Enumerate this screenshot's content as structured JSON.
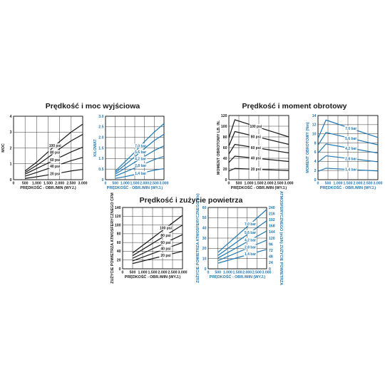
{
  "titles": {
    "power": "Prędkość i moc wyjściowa",
    "torque": "Prędkość i moment obrotowy",
    "air": "Prędkość i zużycie powietrza"
  },
  "colors": {
    "black": "#1a1a1a",
    "blue": "#1f78b4"
  },
  "chart_data": [
    {
      "id": "power_psi",
      "type": "line",
      "color": "black",
      "xlabel": "PRĘDKOŚĆ - OBR./MIN (WYJ.)",
      "ylabel": "MOC",
      "xlim": [
        0,
        3000
      ],
      "ylim": [
        0,
        4
      ],
      "xticks": [
        "0",
        "500",
        "1.000",
        "1.500",
        "2.000",
        "2.500",
        "3.000"
      ],
      "xtick_values": [
        0,
        500,
        1000,
        1500,
        2000,
        2500,
        3000
      ],
      "yticks": [
        "0",
        "1",
        "2",
        "3",
        "4"
      ],
      "ytick_values": [
        0,
        1,
        2,
        3,
        4
      ],
      "label_at": 0.6,
      "series": [
        {
          "name": "100 psi",
          "x": [
            500,
            1000,
            1500,
            2000,
            2500,
            3000
          ],
          "y": [
            0.55,
            1.1,
            1.75,
            2.4,
            3.0,
            3.5
          ]
        },
        {
          "name": "80 psi",
          "x": [
            500,
            1000,
            1500,
            2000,
            2500,
            3000
          ],
          "y": [
            0.45,
            0.9,
            1.4,
            1.95,
            2.45,
            2.85
          ]
        },
        {
          "name": "60 psi",
          "x": [
            500,
            1000,
            1500,
            2000,
            2500,
            3000
          ],
          "y": [
            0.35,
            0.7,
            1.05,
            1.4,
            1.75,
            2.05
          ]
        },
        {
          "name": "40 psi",
          "x": [
            500,
            1000,
            1500,
            2000,
            2500,
            3000
          ],
          "y": [
            0.22,
            0.45,
            0.7,
            0.95,
            1.2,
            1.4
          ]
        },
        {
          "name": "20 psi",
          "x": [
            500,
            1000,
            1500,
            2000,
            2500,
            3000
          ],
          "y": [
            0.08,
            0.18,
            0.3,
            0.42,
            0.55,
            0.65
          ]
        }
      ]
    },
    {
      "id": "power_bar",
      "type": "line",
      "color": "blue",
      "xlabel": "PRĘDKOŚĆ - OBR./MIN (WYJ.)",
      "ylabel": "KILOWAT",
      "xlim": [
        0,
        3000
      ],
      "ylim": [
        0,
        3.0
      ],
      "xticks": [
        "0",
        "500",
        "1.000",
        "1.500",
        "2.000",
        "2.500",
        "3.000"
      ],
      "xtick_values": [
        0,
        500,
        1000,
        1500,
        2000,
        2500,
        3000
      ],
      "yticks": [
        "0",
        "0.5",
        "1.0",
        "1.5",
        "2.0",
        "2.5",
        "3.0"
      ],
      "ytick_values": [
        0,
        0.5,
        1.0,
        1.5,
        2.0,
        2.5,
        3.0
      ],
      "label_at": 0.6,
      "series": [
        {
          "name": "7,0 bar",
          "x": [
            500,
            1000,
            1500,
            2000,
            2500,
            3000
          ],
          "y": [
            0.4,
            0.85,
            1.3,
            1.8,
            2.25,
            2.65
          ]
        },
        {
          "name": "5,6 bar",
          "x": [
            500,
            1000,
            1500,
            2000,
            2500,
            3000
          ],
          "y": [
            0.33,
            0.7,
            1.08,
            1.47,
            1.85,
            2.15
          ]
        },
        {
          "name": "4,2 bar",
          "x": [
            500,
            1000,
            1500,
            2000,
            2500,
            3000
          ],
          "y": [
            0.26,
            0.54,
            0.82,
            1.1,
            1.38,
            1.6
          ]
        },
        {
          "name": "2,8 bar",
          "x": [
            500,
            1000,
            1500,
            2000,
            2500,
            3000
          ],
          "y": [
            0.17,
            0.36,
            0.55,
            0.75,
            0.95,
            1.1
          ]
        },
        {
          "name": "1,4 bar",
          "x": [
            500,
            1000,
            1500,
            2000,
            2500,
            3000
          ],
          "y": [
            0.06,
            0.14,
            0.24,
            0.34,
            0.45,
            0.52
          ]
        }
      ]
    },
    {
      "id": "torque_psi",
      "type": "line",
      "color": "black",
      "xlabel": "PRĘDKOŚĆ - OBR./MIN (WYJ.)",
      "ylabel": "MOMENT OBROTOWY LB. IN.",
      "xlim": [
        0,
        3000
      ],
      "ylim": [
        0,
        120
      ],
      "xticks": [
        "0",
        "500",
        "1.000",
        "1.500",
        "2.000",
        "2.500",
        "3.000"
      ],
      "xtick_values": [
        0,
        500,
        1000,
        1500,
        2000,
        2500,
        3000
      ],
      "yticks": [
        "0",
        "20",
        "40",
        "60",
        "80",
        "100",
        "120"
      ],
      "ytick_values": [
        0,
        20,
        40,
        60,
        80,
        100,
        120
      ],
      "label_at": 0.45,
      "series": [
        {
          "name": "100 psi",
          "x": [
            0,
            300,
            3000
          ],
          "y": [
            78,
            112,
            80
          ]
        },
        {
          "name": "80 psi",
          "x": [
            0,
            300,
            3000
          ],
          "y": [
            63,
            90,
            66
          ]
        },
        {
          "name": "60 psi",
          "x": [
            0,
            300,
            3000
          ],
          "y": [
            48,
            66,
            50
          ]
        },
        {
          "name": "40 psi",
          "x": [
            0,
            300,
            3000
          ],
          "y": [
            32,
            44,
            34
          ]
        },
        {
          "name": "20 psi",
          "x": [
            0,
            300,
            3000
          ],
          "y": [
            16,
            21,
            17
          ]
        }
      ]
    },
    {
      "id": "torque_bar",
      "type": "line",
      "color": "blue",
      "xlabel": "PRĘDKOŚĆ - OBR./MIN (WYJ.)",
      "ylabel": "MOMENT OBROTOWY (Nm)",
      "xlim": [
        0,
        3000
      ],
      "ylim": [
        0,
        14
      ],
      "xticks": [
        "0",
        "500",
        "1.000",
        "1.500",
        "2.000",
        "2.500",
        "3.000"
      ],
      "xtick_values": [
        0,
        500,
        1000,
        1500,
        2000,
        2500,
        3000
      ],
      "yticks": [
        "0",
        "2",
        "4",
        "6",
        "8",
        "10",
        "12",
        "14"
      ],
      "ytick_values": [
        0,
        2,
        4,
        6,
        8,
        10,
        12,
        14
      ],
      "label_at": 0.55,
      "series": [
        {
          "name": "7,0 bar",
          "x": [
            0,
            400,
            3000
          ],
          "y": [
            9,
            13,
            9.2
          ]
        },
        {
          "name": "5,6 bar",
          "x": [
            0,
            400,
            3000
          ],
          "y": [
            7.5,
            10.3,
            7.6
          ]
        },
        {
          "name": "4,2 bar",
          "x": [
            0,
            400,
            3000
          ],
          "y": [
            5.8,
            7.8,
            5.8
          ]
        },
        {
          "name": "2,8 bar",
          "x": [
            0,
            400,
            3000
          ],
          "y": [
            3.8,
            5.2,
            3.9
          ]
        },
        {
          "name": "1,4 bar",
          "x": [
            0,
            400,
            3000
          ],
          "y": [
            1.8,
            2.5,
            1.9
          ]
        }
      ]
    },
    {
      "id": "air_psi",
      "type": "line",
      "color": "black",
      "xlabel": "PRĘDKOŚĆ - OBR./MIN (WYJ.)",
      "ylabel": "ZUŻYCIE POWIETRZA ATMOSFERYCZNEGO CFM",
      "xlim": [
        0,
        3000
      ],
      "ylim": [
        0,
        140
      ],
      "xticks": [
        "0",
        "500",
        "1.000",
        "1.500",
        "2.000",
        "2.500",
        "3.000"
      ],
      "xtick_values": [
        0,
        500,
        1000,
        1500,
        2000,
        2500,
        3000
      ],
      "yticks": [
        "0",
        "20",
        "40",
        "60",
        "80",
        "100",
        "120",
        "140"
      ],
      "ytick_values": [
        0,
        20,
        40,
        60,
        80,
        100,
        120,
        140
      ],
      "label_at": 0.72,
      "series": [
        {
          "name": "100 psi",
          "x": [
            500,
            3000
          ],
          "y": [
            36,
            122
          ]
        },
        {
          "name": "80 psi",
          "x": [
            500,
            3000
          ],
          "y": [
            30,
            100
          ]
        },
        {
          "name": "60 psi",
          "x": [
            500,
            3000
          ],
          "y": [
            24,
            78
          ]
        },
        {
          "name": "40 psi",
          "x": [
            500,
            3000
          ],
          "y": [
            18,
            60
          ]
        },
        {
          "name": "20 psi",
          "x": [
            500,
            3000
          ],
          "y": [
            12,
            40
          ]
        }
      ]
    },
    {
      "id": "air_bar",
      "type": "line",
      "color": "blue",
      "xlabel": "PRĘDKOŚĆ - OBR./MIN (WYJ.)",
      "ylabel": "ZUŻYCIE POWIETRZA ATMOSFERYCZNEGO (l/s)",
      "ylabel_right": "ATMOSFERYCZNEGO (m3/h) ZUŻYCIE POWIETRZA",
      "xlim": [
        0,
        3000
      ],
      "ylim": [
        0,
        60
      ],
      "xticks": [
        "0",
        "500",
        "1.000",
        "1.500",
        "2.000",
        "2.500",
        "3.000"
      ],
      "xtick_values": [
        0,
        500,
        1000,
        1500,
        2000,
        2500,
        3000
      ],
      "yticks": [
        "0",
        "10",
        "20",
        "30",
        "40",
        "50",
        "60"
      ],
      "ytick_values": [
        0,
        10,
        20,
        30,
        40,
        50,
        60
      ],
      "yticks_right": [
        "0",
        "24",
        "48",
        "72",
        "96",
        "120",
        "144",
        "168",
        "192",
        "216",
        "240"
      ],
      "label_at": 0.72,
      "series": [
        {
          "name": "7,0 bar",
          "x": [
            500,
            3000
          ],
          "y": [
            16,
            58
          ]
        },
        {
          "name": "5,6 bar",
          "x": [
            500,
            3000
          ],
          "y": [
            13,
            47
          ]
        },
        {
          "name": "4,2 bar",
          "x": [
            500,
            3000
          ],
          "y": [
            10.5,
            37
          ]
        },
        {
          "name": "2,8 bar",
          "x": [
            500,
            3000
          ],
          "y": [
            8,
            28
          ]
        },
        {
          "name": "1,4 bar",
          "x": [
            500,
            3000
          ],
          "y": [
            5.5,
            19
          ]
        }
      ]
    }
  ]
}
